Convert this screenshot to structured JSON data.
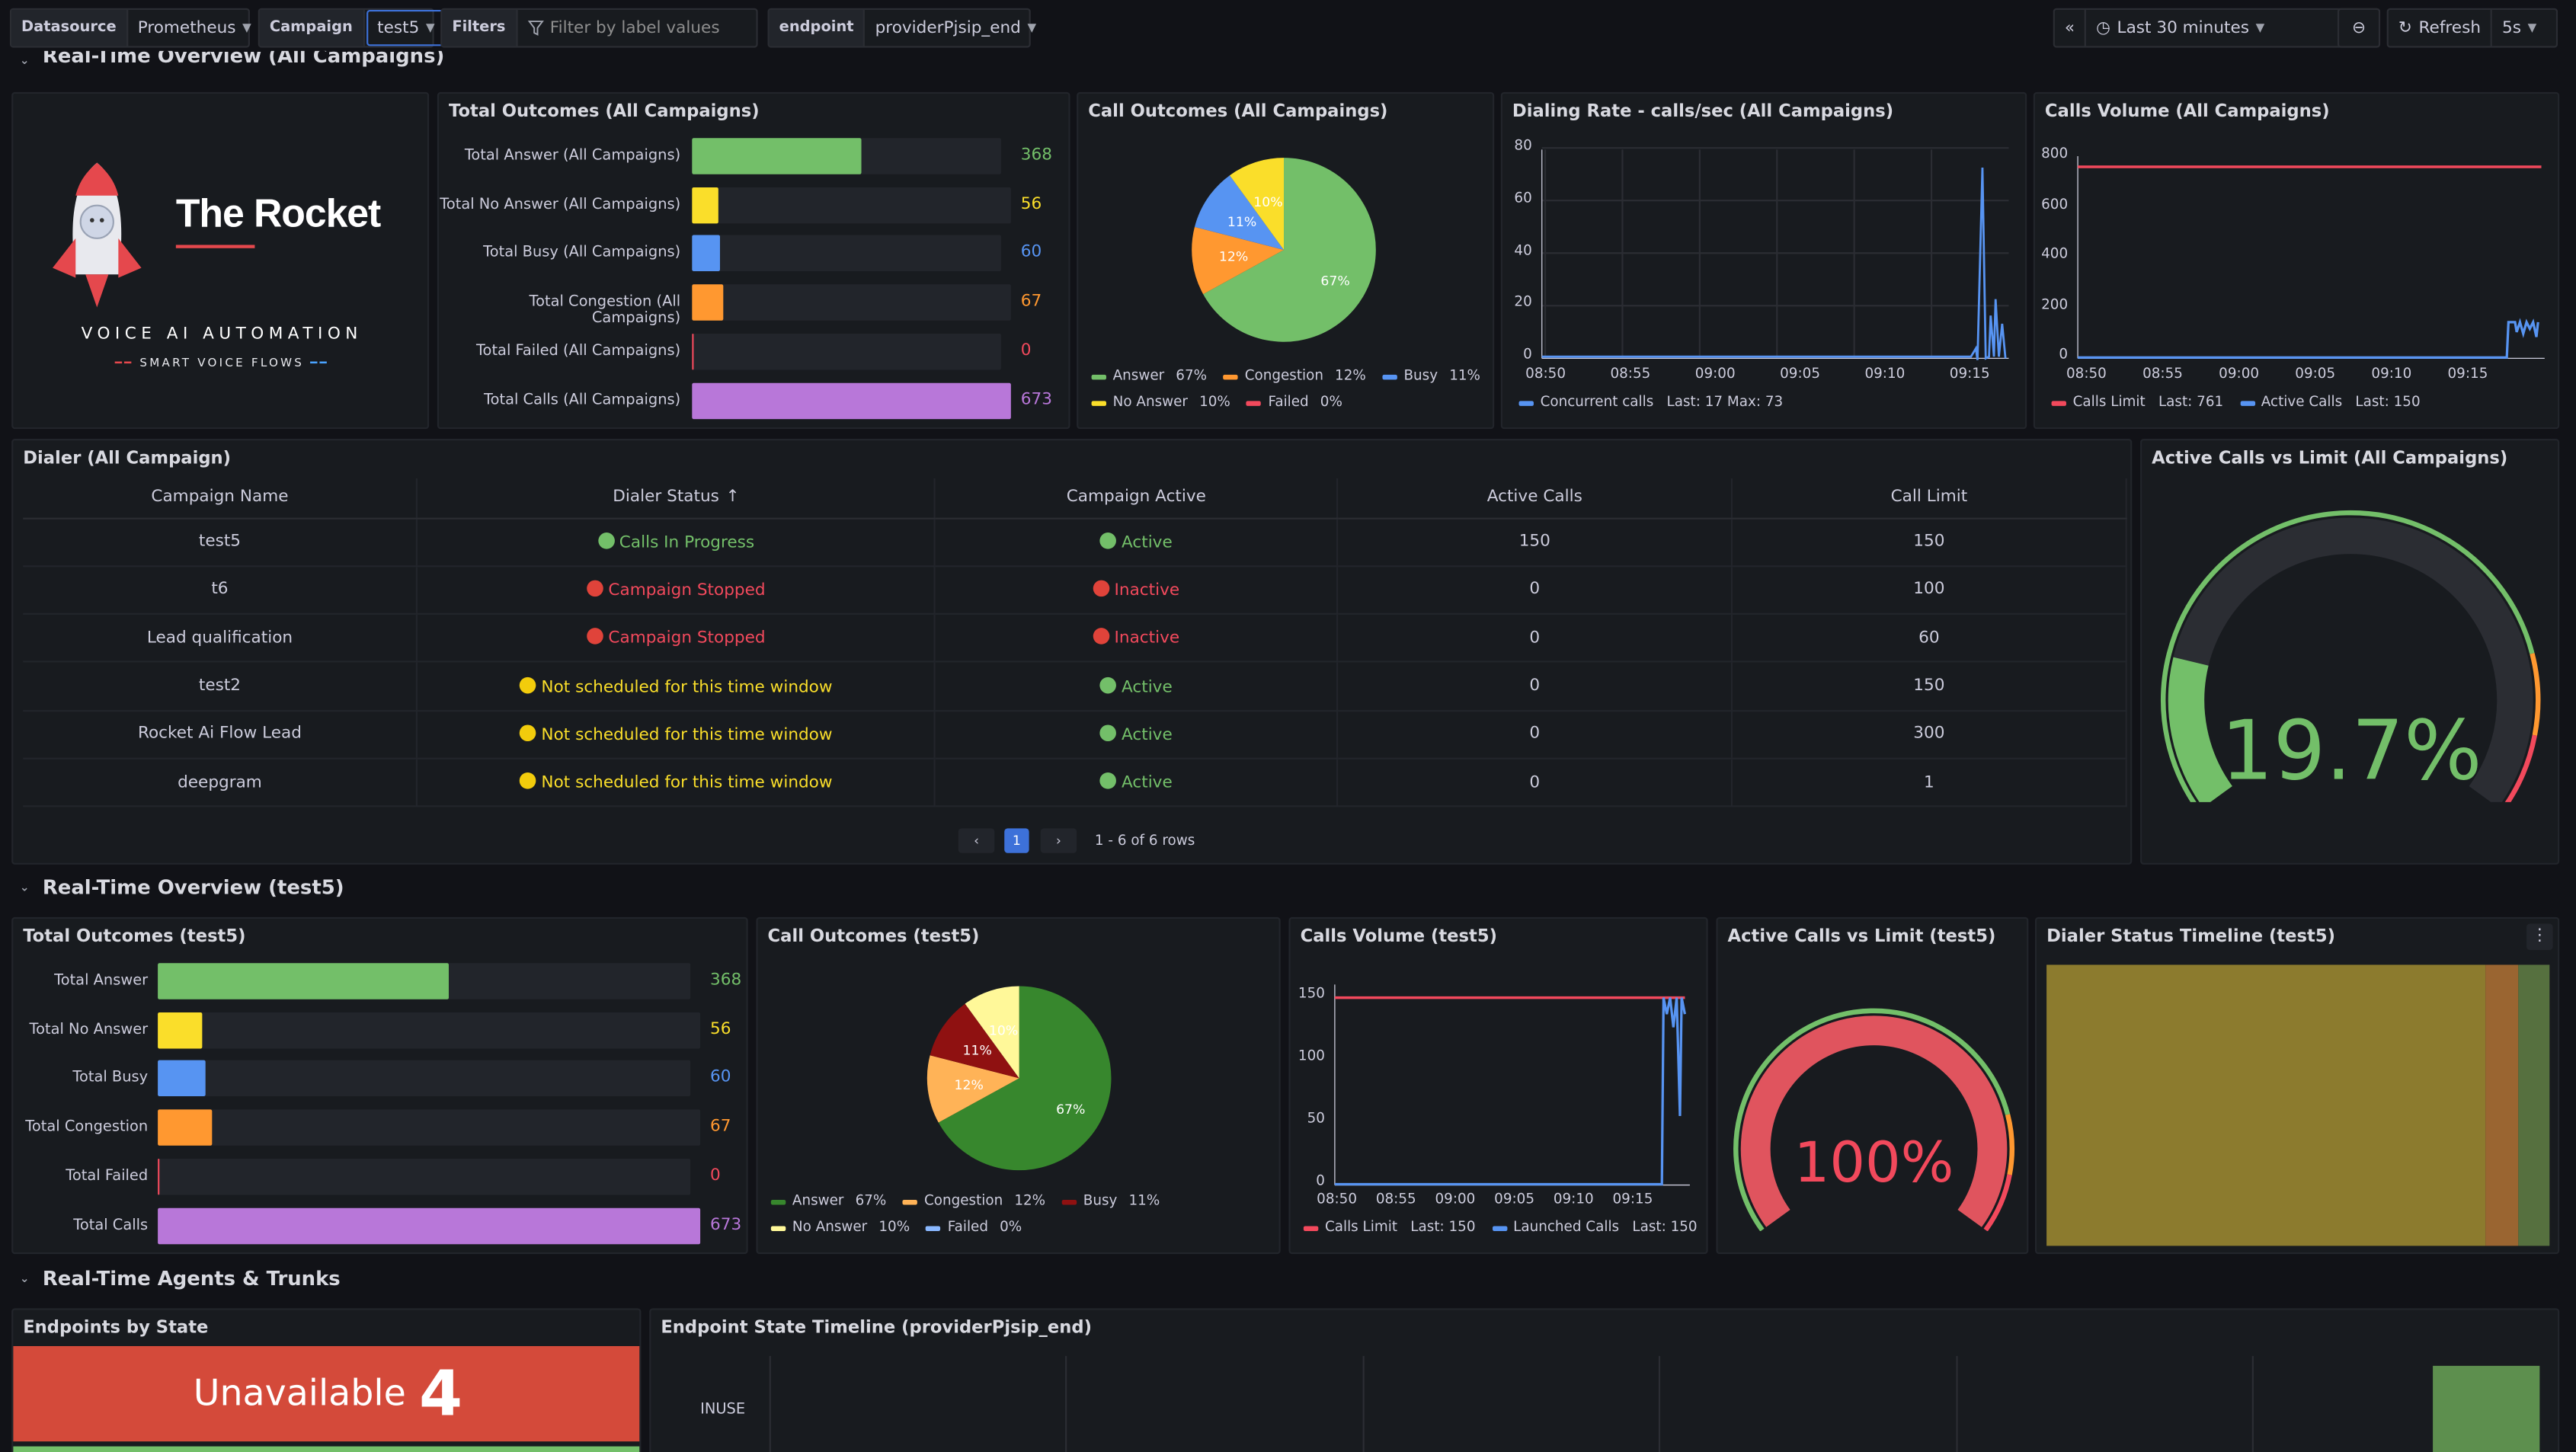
{
  "topbar": {
    "datasource_label": "Datasource",
    "datasource_value": "Prometheus",
    "campaign_label": "Campaign",
    "campaign_value": "test5",
    "filters_label": "Filters",
    "filters_placeholder": "Filter by label values",
    "endpoint_label": "endpoint",
    "endpoint_value": "providerPjsip_end",
    "time_range": "Last 30 minutes",
    "refresh_label": "Refresh",
    "refresh_interval": "5s"
  },
  "rows": {
    "all": "Real-Time Overview (All Campaigns)",
    "test5": "Real-Time Overview (test5)",
    "agents": "Real-Time Agents & Trunks"
  },
  "logo": {
    "name": "The Rocket",
    "tagline": "VOICE AI AUTOMATION",
    "sub": "SMART VOICE FLOWS"
  },
  "total_all": {
    "title": "Total Outcomes (All Campaigns)",
    "max": 673,
    "bars": [
      {
        "label": "Total Answer (All Campaigns)",
        "value": "368",
        "num": 368,
        "color": "#73bf69"
      },
      {
        "label": "Total No Answer (All Campaigns)",
        "value": "56",
        "num": 56,
        "color": "#fade2a"
      },
      {
        "label": "Total Busy (All Campaigns)",
        "value": "60",
        "num": 60,
        "color": "#5794f2"
      },
      {
        "label": "Total Congestion (All Campaigns)",
        "value": "67",
        "num": 67,
        "color": "#ff9830"
      },
      {
        "label": "Total Failed (All Campaigns)",
        "value": "0",
        "num": 0,
        "color": "#f2495c"
      },
      {
        "label": "Total Calls (All Campaigns)",
        "value": "673",
        "num": 673,
        "color": "#b877d9"
      }
    ]
  },
  "pie_all": {
    "title": "Call Outcomes (All Campaings)",
    "labels": [
      "67%",
      "12%",
      "11%",
      "10%"
    ],
    "legend": [
      {
        "name": "Answer",
        "pct": "67%",
        "color": "#73bf69"
      },
      {
        "name": "Congestion",
        "pct": "12%",
        "color": "#ff9830"
      },
      {
        "name": "Busy",
        "pct": "11%",
        "color": "#5794f2"
      },
      {
        "name": "No Answer",
        "pct": "10%",
        "color": "#fade2a"
      },
      {
        "name": "Failed",
        "pct": "0%",
        "color": "#f2495c"
      }
    ]
  },
  "dialing": {
    "title": "Dialing Rate - calls/sec (All Campaigns)",
    "y_ticks": [
      "80",
      "60",
      "40",
      "20",
      "0"
    ],
    "x_ticks": [
      "08:50",
      "08:55",
      "09:00",
      "09:05",
      "09:10",
      "09:15"
    ],
    "legend_name": "Concurrent calls",
    "legend_stats": "Last: 17  Max: 73"
  },
  "volume_all": {
    "title": "Calls Volume (All Campaigns)",
    "y_ticks": [
      "800",
      "600",
      "400",
      "200",
      "0"
    ],
    "x_ticks": [
      "08:50",
      "08:55",
      "09:00",
      "09:05",
      "09:10",
      "09:15"
    ],
    "legend": [
      {
        "name": "Calls Limit",
        "stats": "Last: 761",
        "color": "#f2495c"
      },
      {
        "name": "Active Calls",
        "stats": "Last: 150",
        "color": "#5794f2"
      }
    ]
  },
  "dialer": {
    "title": "Dialer (All Campaign)",
    "headers": [
      "Campaign Name",
      "Dialer Status",
      "Campaign Active",
      "Active Calls",
      "Call Limit"
    ],
    "sort_icon": "↑",
    "rows": [
      {
        "name": "test5",
        "status": "Calls In Progress",
        "status_color": "g",
        "active": "Active",
        "active_color": "g",
        "calls": "150",
        "limit": "150"
      },
      {
        "name": "t6",
        "status": "Campaign Stopped",
        "status_color": "r",
        "active": "Inactive",
        "active_color": "r",
        "calls": "0",
        "limit": "100"
      },
      {
        "name": "Lead qualification",
        "status": "Campaign Stopped",
        "status_color": "r",
        "active": "Inactive",
        "active_color": "r",
        "calls": "0",
        "limit": "60"
      },
      {
        "name": "test2",
        "status": "Not scheduled for this time window",
        "status_color": "y",
        "active": "Active",
        "active_color": "g",
        "calls": "0",
        "limit": "150"
      },
      {
        "name": "Rocket Ai Flow Lead",
        "status": "Not scheduled for this time window",
        "status_color": "y",
        "active": "Active",
        "active_color": "g",
        "calls": "0",
        "limit": "300"
      },
      {
        "name": "deepgram",
        "status": "Not scheduled for this time window",
        "status_color": "y",
        "active": "Active",
        "active_color": "g",
        "calls": "0",
        "limit": "1"
      }
    ],
    "page": "1",
    "rows_info": "1 - 6 of 6 rows"
  },
  "gauge_all": {
    "title": "Active Calls vs Limit (All Campaigns)",
    "value": "19.7%",
    "fraction": 0.197
  },
  "total_t5": {
    "title": "Total Outcomes (test5)",
    "max": 673,
    "bars": [
      {
        "label": "Total Answer",
        "value": "368",
        "num": 368,
        "color": "#73bf69"
      },
      {
        "label": "Total No Answer",
        "value": "56",
        "num": 56,
        "color": "#fade2a"
      },
      {
        "label": "Total Busy",
        "value": "60",
        "num": 60,
        "color": "#5794f2"
      },
      {
        "label": "Total Congestion",
        "value": "67",
        "num": 67,
        "color": "#ff9830"
      },
      {
        "label": "Total Failed",
        "value": "0",
        "num": 0,
        "color": "#f2495c"
      },
      {
        "label": "Total Calls",
        "value": "673",
        "num": 673,
        "color": "#b877d9"
      }
    ]
  },
  "pie_t5": {
    "title": "Call Outcomes (test5)",
    "labels": [
      "67%",
      "12%",
      "11%",
      "10%"
    ],
    "legend": [
      {
        "name": "Answer",
        "pct": "67%",
        "color": "#37872d"
      },
      {
        "name": "Congestion",
        "pct": "12%",
        "color": "#ffb357"
      },
      {
        "name": "Busy",
        "pct": "11%",
        "color": "#8f1111"
      },
      {
        "name": "No Answer",
        "pct": "10%",
        "color": "#fff899"
      },
      {
        "name": "Failed",
        "pct": "0%",
        "color": "#8ab8ff"
      }
    ]
  },
  "volume_t5": {
    "title": "Calls Volume (test5)",
    "y_ticks": [
      "150",
      "100",
      "50",
      "0"
    ],
    "x_ticks": [
      "08:50",
      "08:55",
      "09:00",
      "09:05",
      "09:10",
      "09:15"
    ],
    "legend": [
      {
        "name": "Calls Limit",
        "stats": "Last: 150",
        "color": "#f2495c"
      },
      {
        "name": "Launched Calls",
        "stats": "Last: 150",
        "color": "#5794f2"
      }
    ]
  },
  "gauge_t5": {
    "title": "Active Calls vs Limit (test5)",
    "value": "100%",
    "fraction": 1.0
  },
  "timeline_t5": {
    "title": "Dialer Status Timeline (test5)"
  },
  "endpoints": {
    "title": "Endpoints by State",
    "state": "Unavailable",
    "count": "4"
  },
  "ep_timeline": {
    "title": "Endpoint State Timeline (providerPjsip_end)",
    "row_label": "INUSE"
  }
}
